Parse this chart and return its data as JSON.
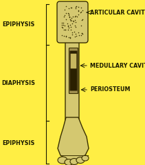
{
  "bg_color": "#FFEE44",
  "bone_color": "#D4C870",
  "bone_outline": "#3a3000",
  "labels": {
    "epiphysis_top": "EPIPHYSIS",
    "epiphysis_bottom": "EPIPHYSIS",
    "diaphysis": "DIAPHYSIS",
    "articular_cavity": "ARTICULAR CAVITY",
    "medullary_cavity": "MEDULLARY CAVITY",
    "periosteum": "PERIOSTEUM"
  },
  "label_fontsize": 5.8,
  "label_color": "#1a1a00",
  "figsize": [
    2.11,
    2.39
  ],
  "dpi": 100
}
